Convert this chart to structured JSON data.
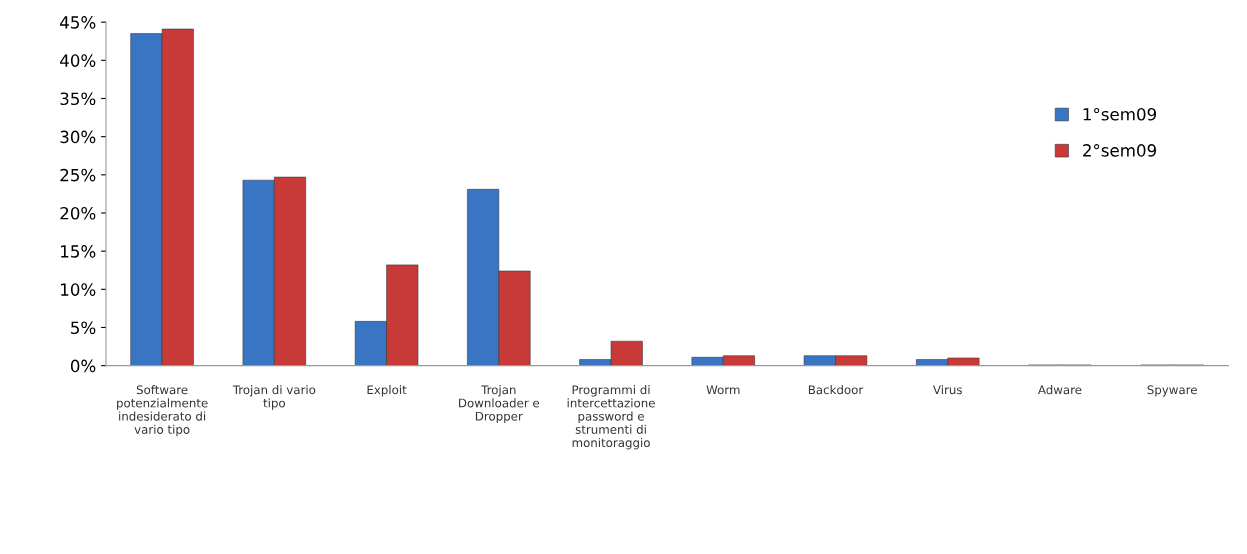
{
  "chart_data": {
    "type": "bar",
    "categories": [
      "Software\npotenzialmente\nindesiderato di\nvario tipo",
      "Trojan di vario\ntipo",
      "Exploit",
      "Trojan\nDownloader e\nDropper",
      "Programmi di\nintercettazione\npassword e\nstrumenti di\nmonitoraggio",
      "Worm",
      "Backdoor",
      "Virus",
      "Adware",
      "Spyware"
    ],
    "series": [
      {
        "name": "1°sem09",
        "color": "#3a75c4",
        "values": [
          43.5,
          24.3,
          5.8,
          23.1,
          0.8,
          1.1,
          1.3,
          0.8,
          0.1,
          0.1
        ]
      },
      {
        "name": "2°sem09",
        "color": "#c83a38",
        "values": [
          44.1,
          24.7,
          13.2,
          12.4,
          3.2,
          1.3,
          1.3,
          1.0,
          0.1,
          0.1
        ]
      }
    ],
    "ylim": [
      0,
      45
    ],
    "yticks": [
      {
        "value": 0,
        "label": "0%"
      },
      {
        "value": 5,
        "label": "5%"
      },
      {
        "value": 10,
        "label": "10%"
      },
      {
        "value": 15,
        "label": "15%"
      },
      {
        "value": 20,
        "label": "20%"
      },
      {
        "value": 25,
        "label": "25%"
      },
      {
        "value": 30,
        "label": "30%"
      },
      {
        "value": 35,
        "label": "35%"
      },
      {
        "value": 40,
        "label": "40%"
      },
      {
        "value": 45,
        "label": "45%"
      }
    ],
    "grid": false,
    "legend": "center right"
  }
}
